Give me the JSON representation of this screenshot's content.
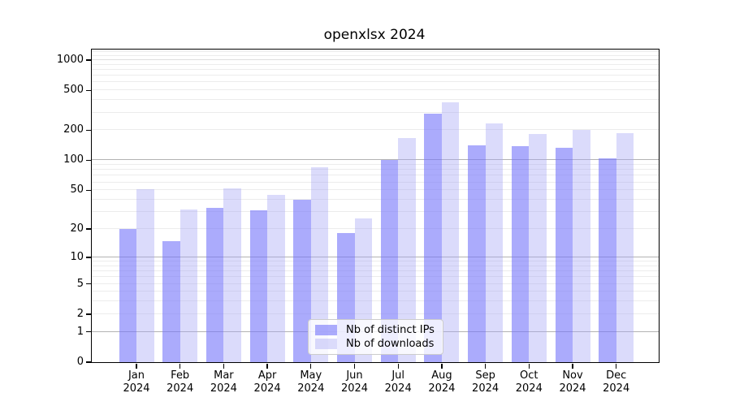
{
  "chart_data": {
    "type": "bar",
    "title": "openxlsx 2024",
    "categories": [
      "Jan 2024",
      "Feb 2024",
      "Mar 2024",
      "Apr 2024",
      "May 2024",
      "Jun 2024",
      "Jul 2024",
      "Aug 2024",
      "Sep 2024",
      "Oct 2024",
      "Nov 2024",
      "Dec 2024"
    ],
    "series": [
      {
        "name": "Nb of distinct IPs",
        "color": "#ABABFB",
        "fill": "rgba(117,117,250,0.61)",
        "values": [
          20,
          15,
          33,
          31,
          40,
          18,
          100,
          290,
          142,
          138,
          134,
          105
        ]
      },
      {
        "name": "Nb of downloads",
        "color": "#DBDBFB",
        "fill": "rgba(165,165,245,0.40)",
        "values": [
          51,
          32,
          52,
          45,
          85,
          26,
          167,
          380,
          235,
          183,
          200,
          188
        ]
      }
    ],
    "xlabel": "",
    "ylabel": "",
    "y_axis": {
      "scale": "log10(value+1)",
      "tick_values": [
        0,
        1,
        2,
        5,
        10,
        20,
        50,
        100,
        200,
        500,
        1000
      ],
      "ylim": [
        0,
        1280
      ],
      "major_grid_values": [
        1,
        10,
        100
      ],
      "minor_grid": "on (2-9 per decade, up to 1200)"
    },
    "legend": {
      "position": "lower center",
      "entries": [
        "Nb of distinct IPs",
        "Nb of downloads"
      ]
    }
  },
  "colors": {
    "background": "#ffffff",
    "spine": "#000000",
    "text": "#000000",
    "grid_major": "#b3b3b3",
    "grid_1000": "#dedede",
    "grid_minor": "#ececec"
  }
}
